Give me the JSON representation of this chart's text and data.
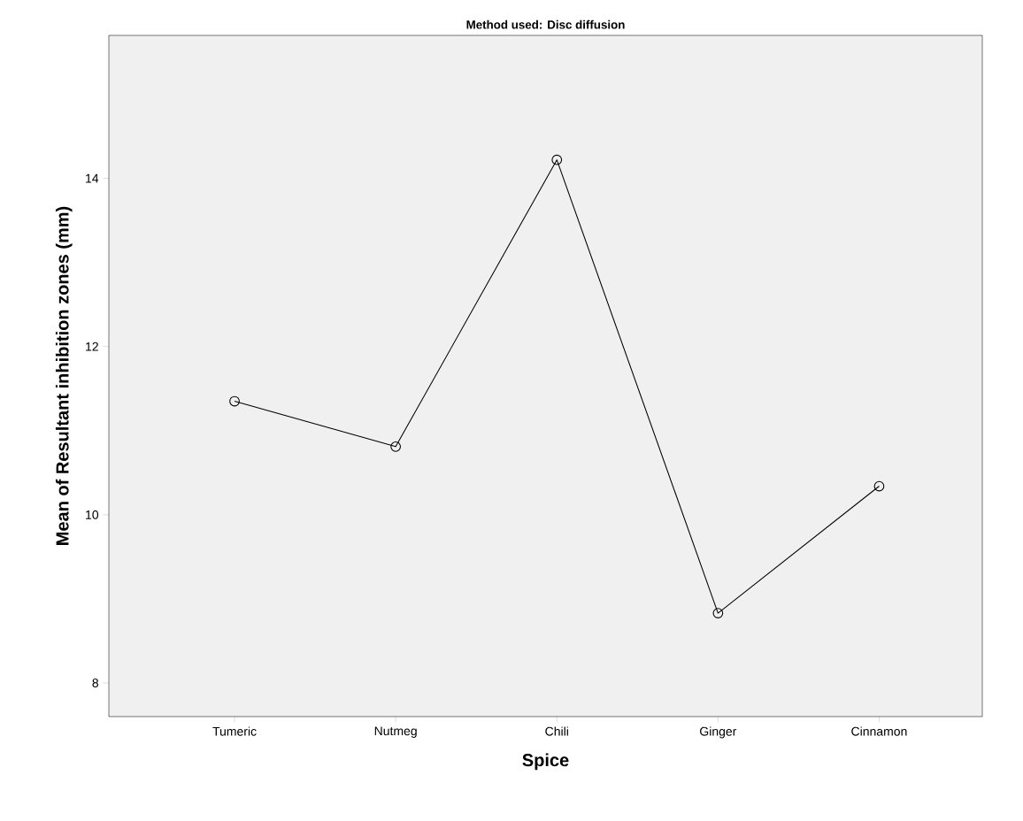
{
  "chart_data": {
    "type": "line",
    "title": "Method used: Disc diffusion",
    "xlabel": "Spice",
    "ylabel": "Mean of Resultant inhibition zones (mm)",
    "categories": [
      "Tumeric",
      "Nutmeg",
      "Chili",
      "Ginger",
      "Cinnamon"
    ],
    "series": [
      {
        "color": "#000000",
        "values": [
          11.35,
          10.81,
          14.22,
          8.83,
          10.34
        ]
      }
    ],
    "ylim": [
      7.6,
      15.7
    ],
    "yticks": [
      8,
      10,
      12,
      14
    ],
    "grid": false,
    "marker": "circle",
    "line_style": "solid"
  }
}
